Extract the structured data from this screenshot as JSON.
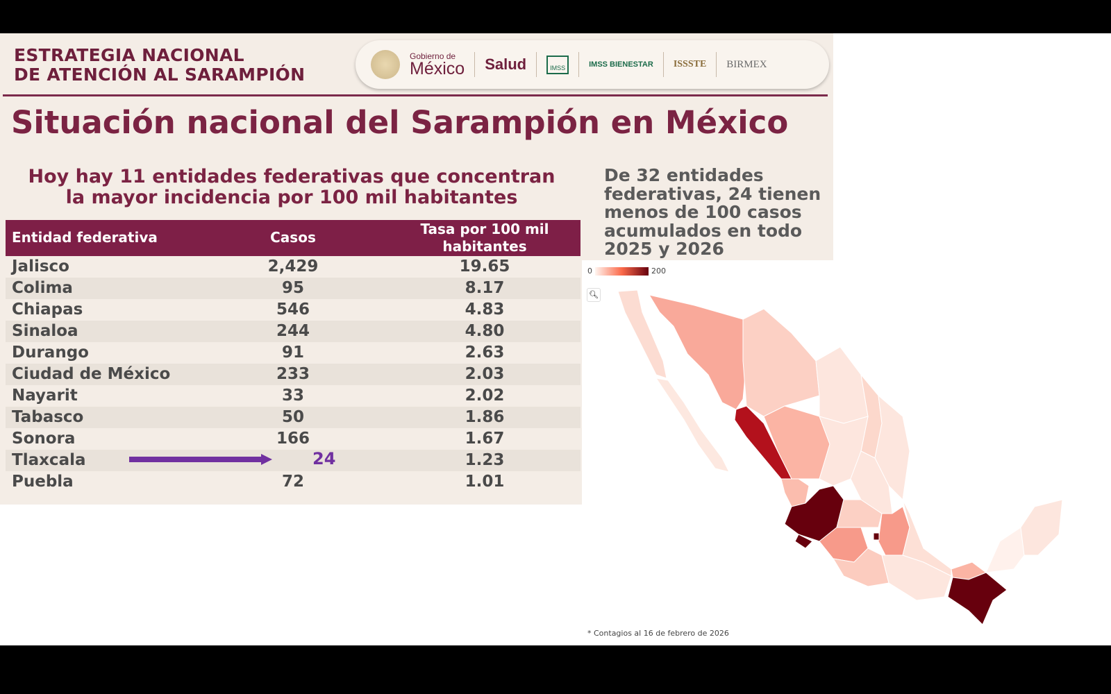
{
  "header": {
    "line1": "ESTRATEGIA NACIONAL",
    "line2": "DE ATENCIÓN AL SARAMPIÓN"
  },
  "logos": {
    "gob_small": "Gobierno de",
    "gob_big": "México",
    "salud": "Salud",
    "imss": "IMSS",
    "imss_bienestar": "IMSS BIENESTAR",
    "issste": "ISSSTE",
    "birmex": "BIRMEX"
  },
  "title": "Situación nacional del Sarampión en México",
  "subtitle": {
    "line1": "Hoy hay 11 entidades federativas que concentran",
    "line2": "la mayor incidencia por 100 mil habitantes"
  },
  "side_note": "De 32 entidades federativas, 24 tienen menos de 100 casos acumulados en todo 2025 y 2026",
  "table": {
    "headers": [
      "Entidad federativa",
      "Casos",
      "Tasa por 100 mil habitantes"
    ],
    "rows": [
      [
        "Jalisco",
        "2,429",
        "19.65"
      ],
      [
        "Colima",
        "95",
        "8.17"
      ],
      [
        "Chiapas",
        "546",
        "4.83"
      ],
      [
        "Sinaloa",
        "244",
        "4.80"
      ],
      [
        "Durango",
        "91",
        "2.63"
      ],
      [
        "Ciudad de México",
        "233",
        "2.03"
      ],
      [
        "Nayarit",
        "33",
        "2.02"
      ],
      [
        "Tabasco",
        "50",
        "1.86"
      ],
      [
        "Sonora",
        "166",
        "1.67"
      ],
      [
        "Tlaxcala",
        "",
        "1.23"
      ],
      [
        "Puebla",
        "72",
        "1.01"
      ]
    ]
  },
  "annotation": {
    "value": "24",
    "color": "#7030a0"
  },
  "map": {
    "legend_min": "0",
    "legend_max": "200",
    "footnote": "* Contagios al 16 de febrero de 2026"
  },
  "colors": {
    "maroon": "#7e1f47",
    "low": "#fff5f0",
    "high": "#67000d"
  }
}
